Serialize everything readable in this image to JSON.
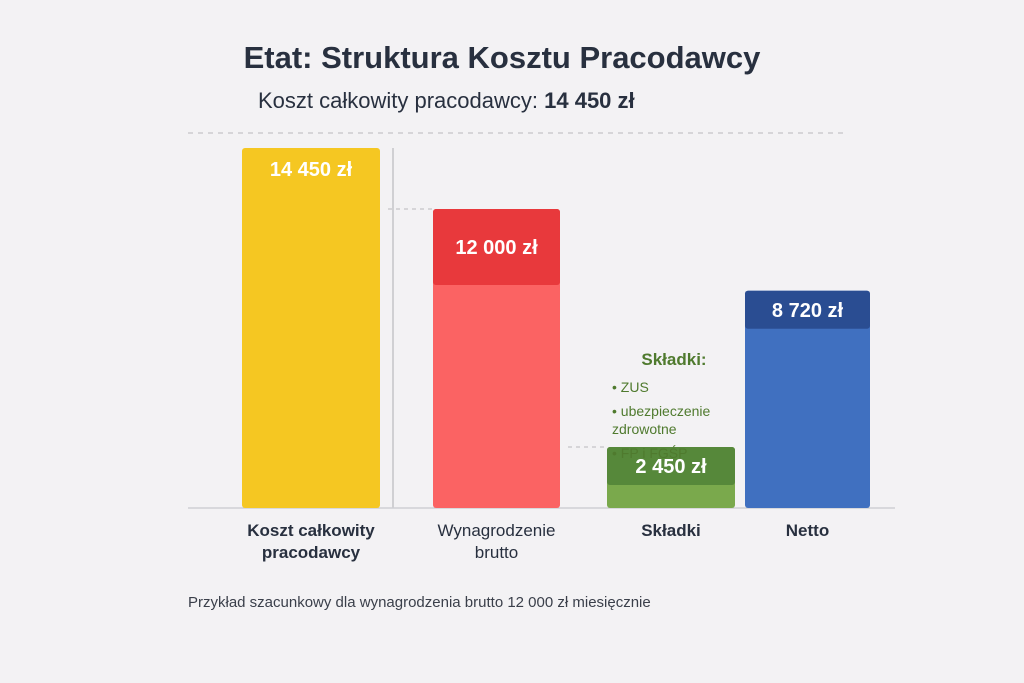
{
  "header": {
    "title": "Etat: Struktura Kosztu Pracodawcy",
    "subtitle_label": "Koszt całkowity pracodawcy:",
    "subtitle_value": "14 450 zł"
  },
  "chart_data": {
    "type": "bar",
    "categories": [
      "Koszt całkowity pracodawcy",
      "Wynagrodzenie brutto",
      "Składki",
      "Netto"
    ],
    "category_bold": [
      true,
      false,
      true,
      true
    ],
    "values": [
      14450,
      12000,
      2450,
      8720
    ],
    "value_labels": [
      "14 450 zł",
      "12 000 zł",
      "2 450 zł",
      "8 720 zł"
    ],
    "colors": [
      "#f5c722",
      "#fb6363",
      "#7aa94c",
      "#4070c0"
    ],
    "header_colors": [
      null,
      "#e8393c",
      "#56883a",
      "#2a4d92"
    ]
  },
  "breakdown": {
    "title": "Składki:",
    "items": [
      "ZUS",
      "ubezpieczenie zdrowotne",
      "FP i FGŚP"
    ]
  },
  "footnote": "Przykład szacunkowy dla wynagrodzenia brutto 12 000 zł miesięcznie"
}
